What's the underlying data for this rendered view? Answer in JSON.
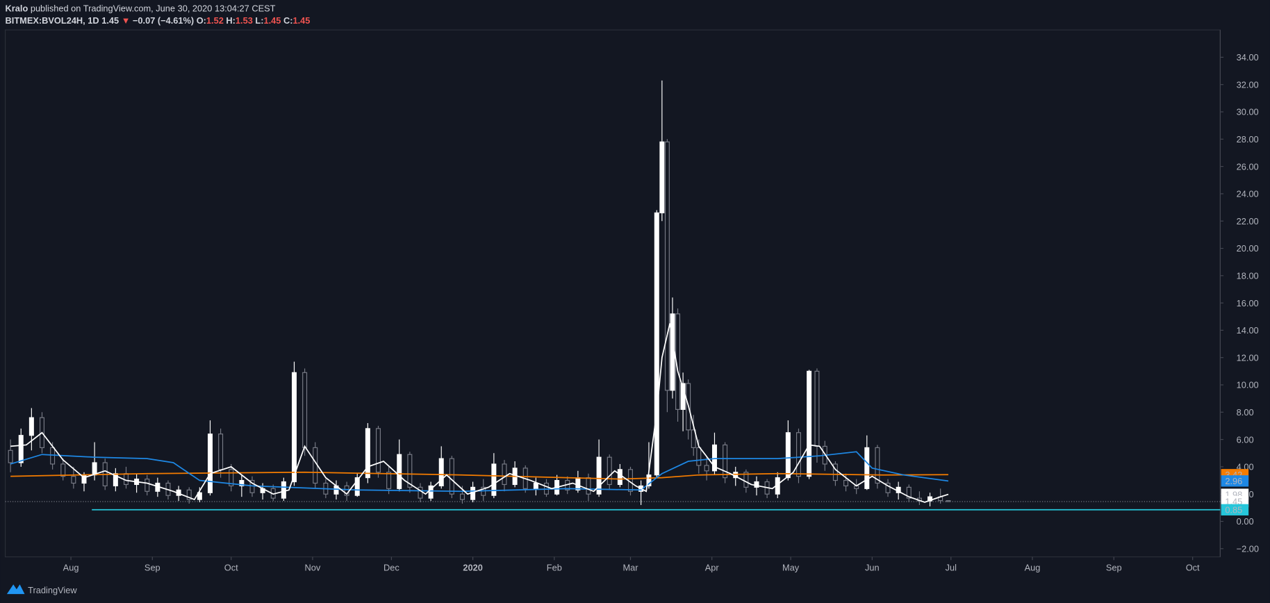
{
  "header": {
    "author": "Kralo",
    "published": "published on TradingView.com, June 30, 2020 13:04:27 CEST",
    "symbol": "BITMEX:BVOL24H, 1D",
    "arrow": "▼",
    "change": "−0.07 (−4.61%)",
    "o_label": "O:",
    "h_label": "H:",
    "l_label": "L:",
    "c_label": "C:"
  },
  "brand": "TradingView",
  "chart_data": {
    "type": "candlestick",
    "xlim": [
      6,
      468.5
    ],
    "ylim": [
      -2.6,
      36
    ],
    "xticks": [
      {
        "value": 31,
        "label": "Aug"
      },
      {
        "value": 62,
        "label": "Sep"
      },
      {
        "value": 92,
        "label": "Oct"
      },
      {
        "value": 123,
        "label": "Nov"
      },
      {
        "value": 153,
        "label": "Dec"
      },
      {
        "value": 184,
        "label": "2020"
      },
      {
        "value": 215,
        "label": "Feb"
      },
      {
        "value": 244,
        "label": "Mar"
      },
      {
        "value": 275,
        "label": "Apr"
      },
      {
        "value": 305,
        "label": "May"
      },
      {
        "value": 336,
        "label": "Jun"
      },
      {
        "value": 366,
        "label": "Jul"
      },
      {
        "value": 397,
        "label": "Aug"
      },
      {
        "value": 428,
        "label": "Sep"
      },
      {
        "value": 458,
        "label": "Oct"
      }
    ],
    "yticks": [
      {
        "value": -2,
        "label": "−2.00"
      },
      {
        "value": 0,
        "label": "0.00"
      },
      {
        "value": 2,
        "label": "2.00"
      },
      {
        "value": 4,
        "label": "4.00"
      },
      {
        "value": 6,
        "label": "6.00"
      },
      {
        "value": 8,
        "label": "8.00"
      },
      {
        "value": 10,
        "label": "10.00"
      },
      {
        "value": 12,
        "label": "12.00"
      },
      {
        "value": 14,
        "label": "14.00"
      },
      {
        "value": 16,
        "label": "16.00"
      },
      {
        "value": 18,
        "label": "18.00"
      },
      {
        "value": 20,
        "label": "20.00"
      },
      {
        "value": 22,
        "label": "22.00"
      },
      {
        "value": 24,
        "label": "24.00"
      },
      {
        "value": 26,
        "label": "26.00"
      },
      {
        "value": 28,
        "label": "28.00"
      },
      {
        "value": 30,
        "label": "30.00"
      },
      {
        "value": 32,
        "label": "32.00"
      },
      {
        "value": 34,
        "label": "34.00"
      }
    ],
    "up_color": "#ffffff",
    "down_color": "#787b86",
    "candles": {
      "x": [
        8,
        12,
        16,
        20,
        24,
        28,
        32,
        36,
        40,
        44,
        48,
        52,
        56,
        60,
        64,
        68,
        72,
        76,
        80,
        84,
        88,
        92,
        96,
        100,
        104,
        108,
        112,
        116,
        120,
        124,
        128,
        132,
        136,
        140,
        144,
        148,
        152,
        156,
        160,
        164,
        168,
        172,
        176,
        180,
        184,
        188,
        192,
        196,
        200,
        204,
        208,
        212,
        216,
        220,
        224,
        228,
        232,
        236,
        240,
        244,
        248,
        251,
        254,
        256,
        258,
        260,
        262,
        264,
        266,
        268,
        270,
        273,
        276,
        280,
        284,
        288,
        292,
        296,
        300,
        304,
        308,
        312,
        315,
        318,
        322,
        326,
        330,
        334,
        338,
        342,
        346,
        350,
        354,
        358,
        362,
        365
      ],
      "open": [
        5.2,
        4.3,
        6.3,
        7.6,
        5.4,
        4.2,
        3.3,
        2.8,
        3.4,
        4.3,
        2.6,
        3.5,
        2.7,
        3.1,
        2.2,
        2.8,
        1.9,
        2.3,
        1.6,
        2.1,
        6.4,
        3.8,
        2.6,
        3.0,
        2.1,
        2.4,
        1.7,
        2.9,
        10.9,
        5.4,
        2.8,
        2.0,
        2.6,
        1.9,
        3.2,
        6.8,
        3.6,
        2.4,
        4.9,
        2.5,
        1.7,
        2.6,
        4.6,
        2.0,
        1.6,
        2.5,
        1.9,
        4.2,
        2.7,
        3.9,
        2.4,
        2.8,
        2.0,
        3.0,
        2.3,
        3.2,
        2.0,
        4.7,
        2.7,
        3.8,
        2.2,
        2.6,
        3.4,
        22.6,
        27.8,
        9.6,
        15.2,
        8.2,
        10.1,
        6.7,
        5.4,
        4.1,
        3.7,
        5.6,
        3.2,
        3.6,
        2.5,
        2.9,
        2.0,
        3.2,
        6.5,
        3.3,
        11.0,
        5.5,
        4.2,
        3.0,
        2.6,
        2.4,
        5.4,
        2.8,
        2.1,
        2.5,
        1.7,
        1.5,
        1.8,
        1.52
      ],
      "high": [
        6.0,
        6.8,
        8.3,
        8.0,
        5.8,
        4.6,
        4.0,
        3.6,
        5.8,
        4.6,
        3.9,
        4.0,
        3.5,
        3.4,
        3.2,
        3.0,
        2.6,
        2.5,
        2.5,
        7.4,
        6.8,
        4.2,
        3.4,
        3.3,
        2.8,
        2.7,
        3.2,
        11.7,
        11.2,
        5.8,
        3.1,
        3.0,
        2.9,
        3.5,
        7.2,
        7.0,
        4.0,
        6.0,
        5.1,
        2.8,
        2.9,
        5.5,
        4.8,
        2.6,
        2.9,
        3.1,
        5.0,
        4.5,
        4.4,
        4.1,
        3.2,
        3.1,
        3.4,
        3.3,
        3.7,
        3.5,
        6.0,
        4.9,
        4.2,
        4.0,
        3.0,
        5.8,
        22.8,
        32.3,
        28.0,
        16.4,
        15.6,
        10.9,
        10.4,
        7.8,
        6.0,
        4.8,
        6.5,
        5.8,
        4.0,
        3.8,
        3.3,
        3.1,
        3.6,
        7.4,
        6.8,
        11.1,
        11.2,
        5.9,
        4.4,
        3.5,
        3.1,
        6.3,
        5.6,
        3.1,
        2.9,
        2.7,
        2.2,
        2.1,
        2.4,
        1.53
      ],
      "low": [
        3.6,
        4.0,
        5.2,
        5.0,
        3.8,
        3.0,
        2.4,
        2.2,
        3.0,
        2.3,
        2.2,
        2.4,
        2.1,
        1.9,
        1.8,
        1.6,
        1.5,
        1.3,
        1.4,
        1.9,
        3.2,
        2.2,
        1.8,
        1.8,
        1.6,
        1.5,
        1.5,
        2.6,
        4.8,
        2.4,
        1.7,
        1.6,
        1.5,
        1.8,
        2.8,
        3.2,
        2.0,
        2.2,
        2.1,
        1.4,
        1.5,
        2.4,
        1.7,
        1.3,
        1.4,
        1.5,
        1.7,
        2.2,
        2.5,
        2.1,
        1.9,
        1.8,
        1.9,
        2.0,
        2.1,
        1.5,
        1.8,
        2.3,
        2.5,
        1.9,
        1.2,
        2.4,
        3.2,
        22.0,
        8.0,
        9.0,
        7.3,
        6.6,
        6.0,
        4.8,
        3.5,
        3.0,
        3.4,
        2.8,
        2.6,
        2.1,
        1.9,
        1.7,
        1.7,
        3.0,
        2.8,
        3.1,
        4.3,
        3.7,
        2.6,
        2.2,
        2.0,
        2.3,
        2.4,
        1.8,
        1.6,
        1.4,
        1.2,
        1.1,
        1.3,
        1.45
      ],
      "close": [
        4.3,
        6.3,
        7.6,
        5.4,
        4.2,
        3.3,
        2.8,
        3.4,
        4.3,
        2.6,
        3.5,
        2.7,
        3.1,
        2.2,
        2.8,
        1.9,
        2.3,
        1.6,
        2.1,
        6.4,
        3.8,
        2.6,
        3.0,
        2.1,
        2.4,
        1.7,
        2.9,
        10.9,
        5.4,
        2.8,
        2.0,
        2.6,
        1.9,
        3.2,
        6.8,
        3.6,
        2.4,
        4.9,
        2.5,
        1.7,
        2.6,
        4.6,
        2.0,
        1.6,
        2.5,
        1.9,
        4.2,
        2.7,
        3.9,
        2.4,
        2.8,
        2.0,
        3.0,
        2.3,
        3.2,
        2.0,
        4.7,
        2.7,
        3.8,
        2.2,
        2.6,
        3.4,
        22.6,
        27.8,
        9.6,
        15.2,
        8.2,
        10.1,
        6.7,
        5.4,
        4.1,
        3.7,
        5.6,
        3.2,
        3.6,
        2.5,
        2.9,
        2.0,
        3.2,
        6.5,
        3.3,
        11.0,
        5.5,
        4.2,
        3.0,
        2.6,
        2.4,
        5.4,
        2.8,
        2.1,
        2.5,
        1.7,
        1.5,
        1.8,
        1.52,
        1.45
      ]
    },
    "lines": [
      {
        "color": "#f57c00",
        "x": [
          8,
          60,
          120,
          180,
          240,
          256,
          270,
          300,
          340,
          365
        ],
        "values": [
          3.3,
          3.5,
          3.6,
          3.4,
          3.1,
          3.2,
          3.4,
          3.5,
          3.4,
          3.42
        ]
      },
      {
        "color": "#1e88e5",
        "x": [
          8,
          20,
          40,
          60,
          70,
          80,
          100,
          140,
          180,
          220,
          248,
          256,
          266,
          276,
          300,
          316,
          330,
          336,
          348,
          365
        ],
        "values": [
          4.2,
          4.9,
          4.7,
          4.6,
          4.3,
          3.0,
          2.6,
          2.3,
          2.2,
          2.4,
          2.3,
          3.5,
          4.4,
          4.6,
          4.6,
          4.8,
          5.1,
          3.9,
          3.4,
          2.96
        ]
      },
      {
        "color": "#ffffff",
        "x": [
          8,
          14,
          20,
          28,
          36,
          44,
          52,
          60,
          70,
          78,
          84,
          92,
          100,
          108,
          114,
          120,
          128,
          136,
          144,
          150,
          158,
          166,
          174,
          182,
          190,
          198,
          206,
          214,
          222,
          230,
          238,
          246,
          250,
          254,
          256,
          259,
          262,
          266,
          270,
          276,
          282,
          290,
          298,
          306,
          312,
          316,
          322,
          330,
          336,
          342,
          350,
          356,
          362,
          365
        ],
        "values": [
          5.5,
          5.6,
          6.5,
          4.5,
          3.2,
          3.7,
          3.0,
          2.8,
          2.2,
          1.6,
          3.5,
          4.0,
          2.8,
          2.0,
          2.3,
          5.5,
          3.2,
          2.0,
          4.0,
          4.4,
          3.0,
          2.0,
          3.4,
          2.0,
          2.5,
          3.5,
          3.0,
          2.4,
          2.8,
          2.2,
          3.7,
          2.6,
          2.2,
          8,
          12,
          14.5,
          11,
          8.5,
          5.5,
          4.0,
          3.5,
          2.7,
          2.4,
          3.6,
          5.6,
          5.5,
          3.8,
          2.6,
          3.3,
          2.6,
          1.8,
          1.4,
          1.8,
          1.98
        ]
      }
    ],
    "hline": {
      "value": 0.85,
      "color": "#26c6da"
    }
  }
}
